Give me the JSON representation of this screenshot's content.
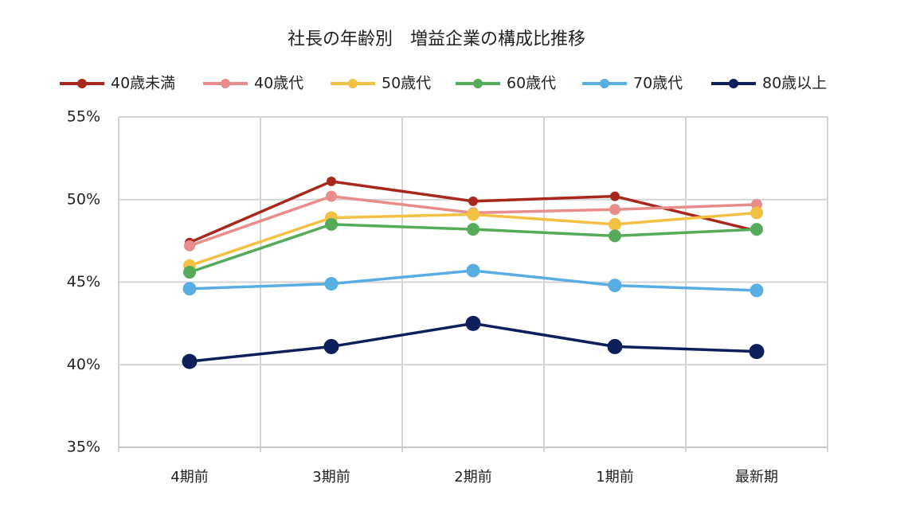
{
  "chart_data": {
    "type": "line",
    "title": "社長の年齢別　増益企業の構成比推移",
    "categories": [
      "4期前",
      "3期前",
      "2期前",
      "1期前",
      "最新期"
    ],
    "series": [
      {
        "name": "40歳未満",
        "color": "#a8281e",
        "values": [
          47.4,
          51.1,
          49.9,
          50.2,
          48.1
        ]
      },
      {
        "name": "40歳代",
        "color": "#e88c8c",
        "values": [
          47.2,
          50.2,
          49.2,
          49.4,
          49.7
        ]
      },
      {
        "name": "50歳代",
        "color": "#f2c043",
        "values": [
          46.0,
          48.9,
          49.1,
          48.5,
          49.2
        ]
      },
      {
        "name": "60歳代",
        "color": "#55ab5a",
        "values": [
          45.6,
          48.5,
          48.2,
          47.8,
          48.2
        ]
      },
      {
        "name": "70歳代",
        "color": "#58aee2",
        "values": [
          44.6,
          44.9,
          45.7,
          44.8,
          44.5
        ]
      },
      {
        "name": "80歳以上",
        "color": "#0e1f5b",
        "values": [
          40.2,
          41.1,
          42.5,
          41.1,
          40.8
        ]
      }
    ],
    "ylim": [
      35,
      55
    ],
    "yticks": [
      {
        "value": 35,
        "label": "35%"
      },
      {
        "value": 40,
        "label": "40%"
      },
      {
        "value": 45,
        "label": "45%"
      },
      {
        "value": 50,
        "label": "50%"
      },
      {
        "value": 55,
        "label": "55%"
      }
    ],
    "grid": true,
    "legend": "top"
  }
}
